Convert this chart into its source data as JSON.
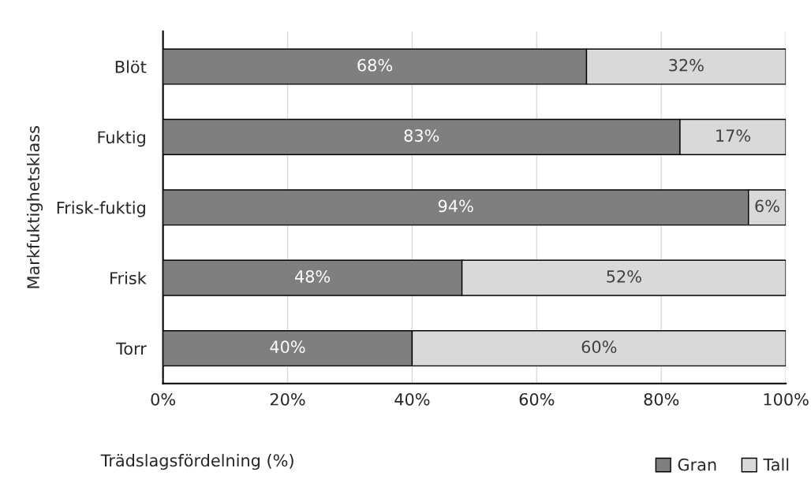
{
  "chart_data": {
    "type": "bar",
    "orientation": "horizontal",
    "stacked": true,
    "categories": [
      "Blöt",
      "Fuktig",
      "Frisk-fuktig",
      "Frisk",
      "Torr"
    ],
    "series": [
      {
        "name": "Gran",
        "color": "#7f7f7f",
        "values": [
          68,
          83,
          94,
          48,
          40
        ],
        "value_labels": [
          "68%",
          "83%",
          "94%",
          "48%",
          "40%"
        ]
      },
      {
        "name": "Tall",
        "color": "#d9d9d9",
        "values": [
          32,
          17,
          6,
          52,
          60
        ],
        "value_labels": [
          "32%",
          "17%",
          "6%",
          "52%",
          "60%"
        ]
      }
    ],
    "xlabel": "Trädslagsfördelning (%)",
    "ylabel": "Markfuktighetsklass",
    "xlim": [
      0,
      100
    ],
    "xticks": [
      {
        "value": 0,
        "label": "0%"
      },
      {
        "value": 20,
        "label": "20%"
      },
      {
        "value": 40,
        "label": "40%"
      },
      {
        "value": 60,
        "label": "60%"
      },
      {
        "value": 80,
        "label": "80%"
      },
      {
        "value": 100,
        "label": "100%"
      }
    ],
    "grid": "x",
    "legend": "bottom right"
  }
}
